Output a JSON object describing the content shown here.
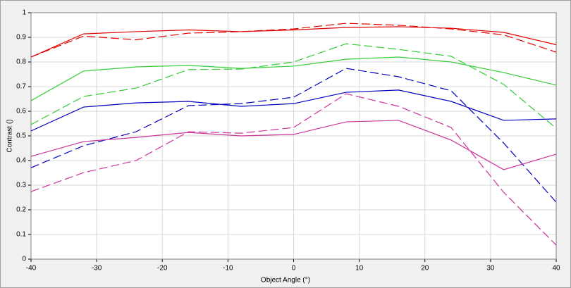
{
  "chart_data": {
    "type": "line",
    "x_label": "Object Angle (°)",
    "y_label": "Contrast ()",
    "x": [
      -40,
      -32,
      -24,
      -16,
      -8,
      0,
      8,
      16,
      24,
      32,
      40
    ],
    "series": [
      {
        "color": "#e00000",
        "dashed": false,
        "values": [
          0.82,
          0.914,
          0.923,
          0.93,
          0.923,
          0.93,
          0.94,
          0.943,
          0.937,
          0.92,
          0.87
        ]
      },
      {
        "color": "#e00000",
        "dashed": true,
        "values": [
          0.82,
          0.905,
          0.89,
          0.917,
          0.923,
          0.934,
          0.957,
          0.949,
          0.934,
          0.91,
          0.84
        ]
      },
      {
        "color": "#33cc33",
        "dashed": false,
        "values": [
          0.643,
          0.763,
          0.78,
          0.786,
          0.774,
          0.783,
          0.811,
          0.82,
          0.8,
          0.757,
          0.706
        ]
      },
      {
        "color": "#33cc33",
        "dashed": true,
        "values": [
          0.546,
          0.66,
          0.694,
          0.769,
          0.771,
          0.8,
          0.874,
          0.851,
          0.823,
          0.709,
          0.531
        ]
      },
      {
        "color": "#0000c0",
        "dashed": false,
        "values": [
          0.52,
          0.617,
          0.634,
          0.64,
          0.62,
          0.631,
          0.677,
          0.686,
          0.64,
          0.563,
          0.569
        ]
      },
      {
        "color": "#0000c0",
        "dashed": true,
        "values": [
          0.371,
          0.46,
          0.517,
          0.623,
          0.631,
          0.657,
          0.774,
          0.74,
          0.683,
          0.471,
          0.231
        ]
      },
      {
        "color": "#cc3399",
        "dashed": false,
        "values": [
          0.417,
          0.477,
          0.494,
          0.514,
          0.5,
          0.506,
          0.557,
          0.563,
          0.483,
          0.363,
          0.426
        ]
      },
      {
        "color": "#cc3399",
        "dashed": true,
        "values": [
          0.274,
          0.351,
          0.4,
          0.517,
          0.511,
          0.534,
          0.671,
          0.62,
          0.534,
          0.271,
          0.057
        ]
      }
    ],
    "xlim": [
      -40,
      40
    ],
    "xticks": [
      -40,
      -30,
      -20,
      -10,
      0,
      10,
      20,
      30,
      40
    ],
    "ylim": [
      0,
      1
    ],
    "yticks": [
      0,
      0.1,
      0.2,
      0.3,
      0.4,
      0.5,
      0.6,
      0.7,
      0.8,
      0.9,
      1
    ],
    "grid": true
  }
}
